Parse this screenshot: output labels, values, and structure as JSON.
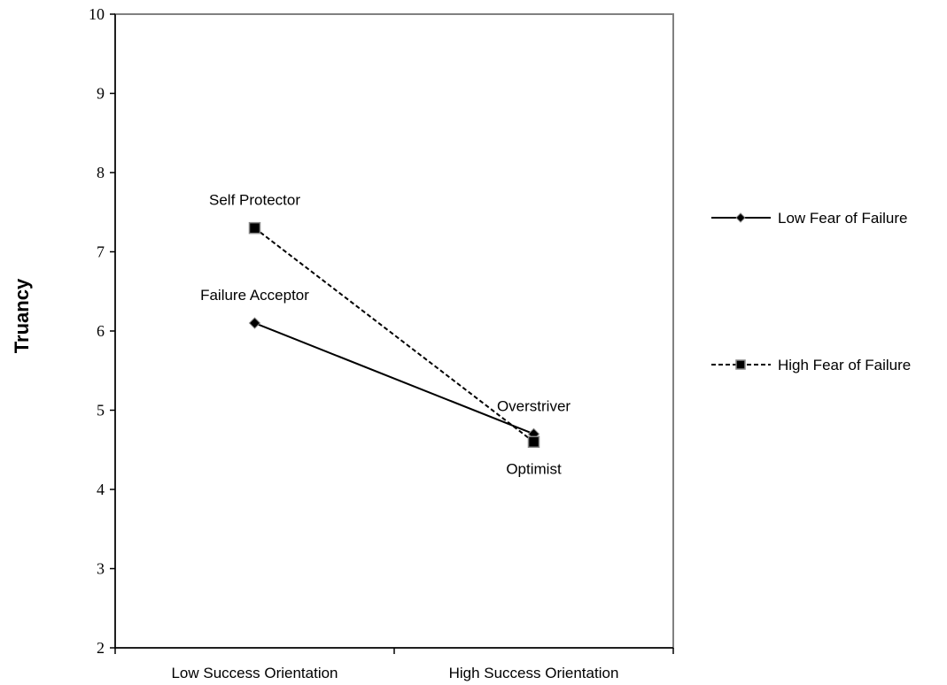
{
  "chart_data": {
    "type": "line",
    "title": "",
    "xlabel": "",
    "ylabel": "Truancy",
    "categories": [
      "Low Success Orientation",
      "High Success Orientation"
    ],
    "ylim": [
      2,
      10
    ],
    "yticks": [
      2,
      3,
      4,
      5,
      6,
      7,
      8,
      9,
      10
    ],
    "grid": false,
    "legend_position": "right",
    "series": [
      {
        "name": "Low Fear of Failure",
        "values": [
          6.1,
          4.7
        ],
        "line_style": "solid",
        "marker": "diamond",
        "color": "#000000"
      },
      {
        "name": "High Fear of Failure",
        "values": [
          7.3,
          4.6
        ],
        "line_style": "dashed",
        "marker": "square",
        "color": "#000000"
      }
    ],
    "annotations": [
      {
        "text": "Self Protector",
        "category": "Low Success Orientation",
        "value": 7.3,
        "placement": "above"
      },
      {
        "text": "Failure Acceptor",
        "category": "Low Success Orientation",
        "value": 6.1,
        "placement": "above"
      },
      {
        "text": "Overstriver",
        "category": "High Success Orientation",
        "value": 4.7,
        "placement": "above"
      },
      {
        "text": "Optimist",
        "category": "High Success Orientation",
        "value": 4.6,
        "placement": "below"
      }
    ]
  }
}
